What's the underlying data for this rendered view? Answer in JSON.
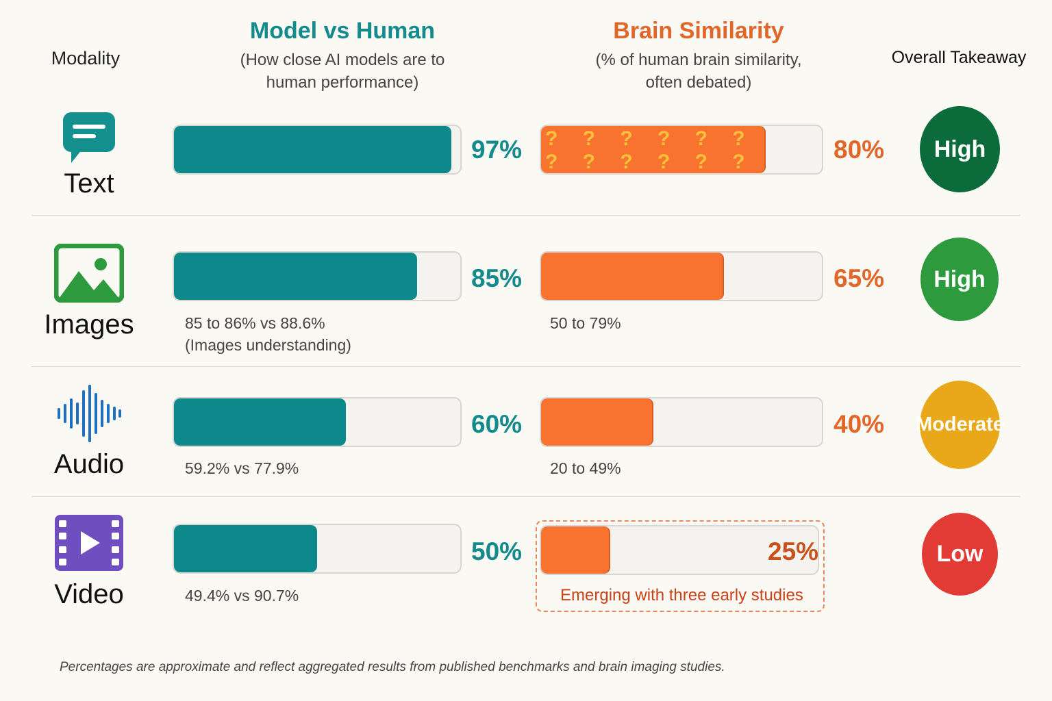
{
  "headers": {
    "modality": "Modality",
    "model_vs_human_title": "Model vs Human",
    "model_vs_human_subtitle_1": "(How close AI models are to",
    "model_vs_human_subtitle_2": "human performance)",
    "brain_title": "Brain Similarity",
    "brain_subtitle_1": "(% of human brain similarity,",
    "brain_subtitle_2": "often debated)",
    "takeaway": "Overall Takeaway"
  },
  "colors": {
    "teal": "#0e898b",
    "orange": "#f7732f",
    "high_dark": "#0b6b3a",
    "high": "#2e9a3e",
    "moderate": "#e9a81a",
    "low": "#e23b35"
  },
  "rows": [
    {
      "modality": "Text",
      "icon": "chat-bubble-icon",
      "model_pct_label": "97%",
      "brain_pct_label": "80%",
      "model_note_1": "",
      "model_note_2": "",
      "brain_note": "",
      "takeaway": "High",
      "brain_marks": "? ? ? ? ? ? ? ? ?\n? ? ? ? ? ? ? ? ?"
    },
    {
      "modality": "Images",
      "icon": "image-icon",
      "model_pct_label": "85%",
      "brain_pct_label": "65%",
      "model_note_1": "85 to 86% vs 88.6%",
      "model_note_2": "(Images understanding)",
      "brain_note": "50 to 79%",
      "takeaway": "High"
    },
    {
      "modality": "Audio",
      "icon": "audio-waveform-icon",
      "model_pct_label": "60%",
      "brain_pct_label": "40%",
      "model_note_1": "59.2% vs 77.9%",
      "model_note_2": "",
      "brain_note": "20 to 49%",
      "takeaway": "Moderate"
    },
    {
      "modality": "Video",
      "icon": "video-icon",
      "model_pct_label": "50%",
      "brain_pct_label": "25%",
      "model_note_1": "49.4% vs 90.7%",
      "model_note_2": "",
      "brain_note": "Emerging with three early studies",
      "takeaway": "Low"
    }
  ],
  "chart_data": {
    "type": "bar",
    "categories": [
      "Text",
      "Images",
      "Audio",
      "Video"
    ],
    "series": [
      {
        "name": "Model vs Human",
        "values": [
          97,
          85,
          60,
          50
        ]
      },
      {
        "name": "Brain Similarity",
        "values": [
          80,
          65,
          40,
          25
        ]
      }
    ],
    "takeaways": [
      "High",
      "High",
      "Moderate",
      "Low"
    ],
    "ylim": [
      0,
      100
    ],
    "orientation": "horizontal"
  },
  "footnote": "Percentages are approximate and reflect aggregated results from published benchmarks and brain imaging studies."
}
